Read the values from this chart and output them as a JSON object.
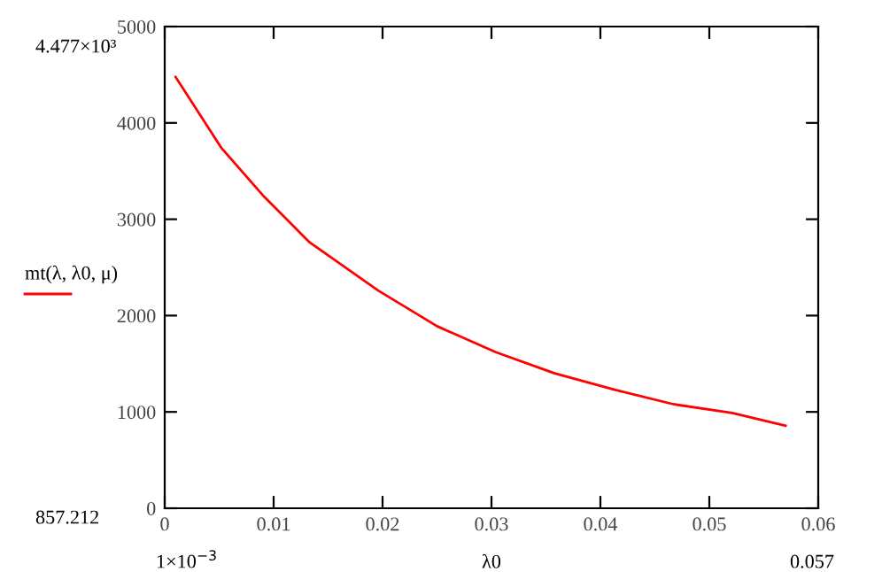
{
  "chart_data": {
    "type": "line",
    "xlabel": "λ0",
    "x": [
      0.001,
      0.0052,
      0.009,
      0.0133,
      0.0196,
      0.025,
      0.0304,
      0.0358,
      0.0413,
      0.0467,
      0.0521,
      0.057
    ],
    "series": [
      {
        "name": "mt(λ, λ0, μ)",
        "color": "#ff0000",
        "values": [
          4477,
          3740,
          3250,
          2760,
          2260,
          1890,
          1620,
          1400,
          1230,
          1080,
          990,
          857.212
        ]
      }
    ],
    "xlim": [
      0,
      0.06
    ],
    "xticks": [
      0,
      0.01,
      0.02,
      0.03,
      0.04,
      0.05,
      0.06
    ],
    "ylim": [
      0,
      5000
    ],
    "yticks": [
      0,
      1000,
      2000,
      3000,
      4000,
      5000
    ],
    "annotations": [
      "4.477×10³",
      "857.212",
      "1×10$^{−3}$",
      "0.057"
    ],
    "legend": "left",
    "grid": false,
    "marker": "none",
    "line_style": "solid"
  }
}
